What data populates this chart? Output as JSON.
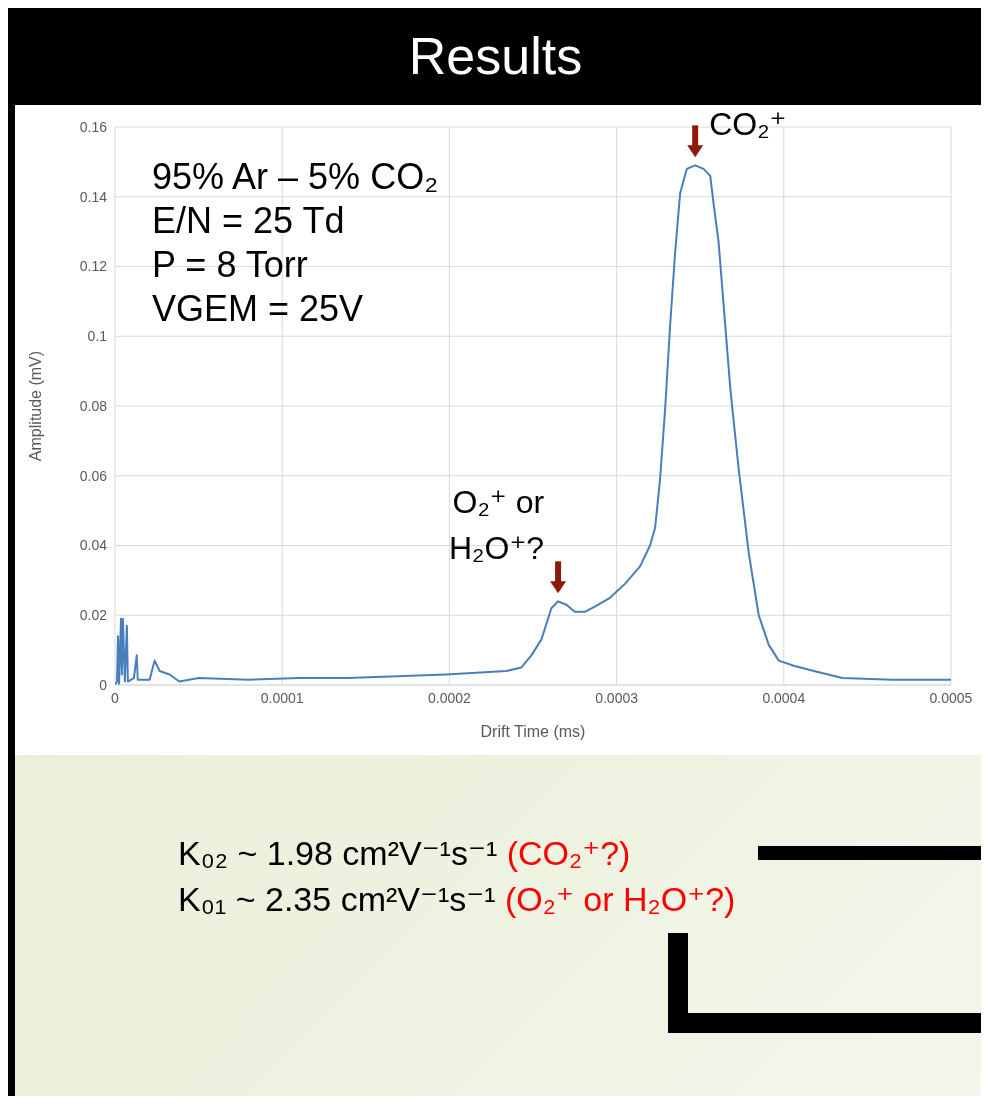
{
  "chart_data": {
    "type": "line",
    "title": "Results",
    "xlabel": "Drift Time (ms)",
    "ylabel": "Amplitude (mV)",
    "x": [
      0,
      1.2e-06,
      1.8e-06,
      2.4e-06,
      3.6e-06,
      4.1e-06,
      4.7e-06,
      5.9e-06,
      7.1e-06,
      7.7e-06,
      1.13e-05,
      1.3e-05,
      1.36e-05,
      2.07e-05,
      2.37e-05,
      2.67e-05,
      3.26e-05,
      3.85e-05,
      5e-05,
      8e-05,
      0.00011,
      0.000139,
      0.000169,
      0.000198,
      0.000216,
      0.000234,
      0.000243,
      0.000249,
      0.000255,
      0.000261,
      0.000265,
      0.00027,
      0.000275,
      0.000281,
      0.000287,
      0.000296,
      0.000305,
      0.000314,
      0.00032,
      0.000323,
      0.000326,
      0.000329,
      0.000332,
      0.000335,
      0.000338,
      0.000342,
      0.000347,
      0.000352,
      0.000356,
      0.000358,
      0.000361,
      0.000364,
      0.000368,
      0.000373,
      0.000379,
      0.000385,
      0.000391,
      0.000397,
      0.000406,
      0.000418,
      0.000435,
      0.000465,
      0.0005
    ],
    "series": [
      {
        "color": "#4a7ebb",
        "values": [
          0,
          0.001,
          0.014,
          0,
          0.019,
          0.003,
          0.019,
          0.001,
          0.017,
          0.001,
          0.002,
          0.0085,
          0.0015,
          0.0015,
          0.007,
          0.004,
          0.003,
          0.001,
          0.002,
          0.0015,
          0.002,
          0.002,
          0.0025,
          0.003,
          0.0035,
          0.004,
          0.005,
          0.0085,
          0.013,
          0.022,
          0.024,
          0.023,
          0.021,
          0.021,
          0.0225,
          0.025,
          0.029,
          0.034,
          0.04,
          0.045,
          0.059,
          0.079,
          0.103,
          0.124,
          0.141,
          0.148,
          0.149,
          0.148,
          0.146,
          0.138,
          0.127,
          0.109,
          0.085,
          0.062,
          0.038,
          0.02,
          0.0115,
          0.007,
          0.0055,
          0.004,
          0.002,
          0.0015,
          0.0015
        ]
      }
    ],
    "xlim": [
      0,
      0.0005
    ],
    "xticks": [
      0,
      0.0001,
      0.0002,
      0.0003,
      0.0004,
      0.0005
    ],
    "ylim": [
      0,
      0.16
    ],
    "yticks": [
      0,
      0.02,
      0.04,
      0.06,
      0.08,
      0.1,
      0.12,
      0.14,
      0.16
    ],
    "grid": true,
    "marker": "none",
    "line_style": "solid",
    "legend": false,
    "annotations": [
      "95% Ar – 5% CO₂",
      "E/N = 25 Td",
      "P = 8 Torr",
      "VGEM = 25V",
      {
        "text": "O₂⁺ or\nH₂O⁺?",
        "x": 0.000265,
        "y": 0.024
      },
      {
        "text": "CO₂⁺",
        "x": 0.000347,
        "y": 0.149
      },
      "K₀₂ ~ 1.98 cm²V⁻¹s⁻¹",
      "(CO₂⁺?)",
      "K₀₁ ~ 2.35 cm²V⁻¹s⁻¹",
      "(O₂⁺ or H₂O⁺?)"
    ]
  }
}
